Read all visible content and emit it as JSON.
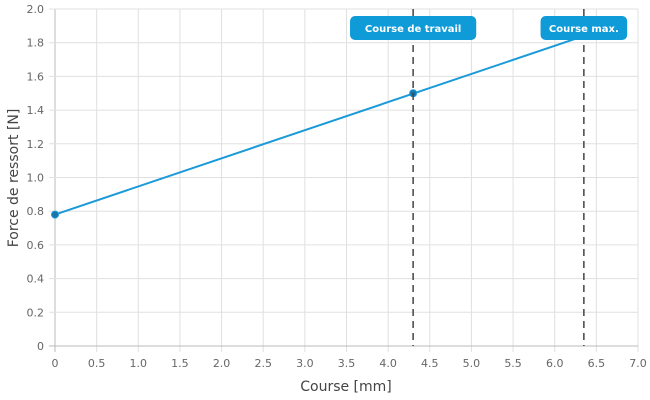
{
  "chart_data": {
    "type": "line",
    "title": "",
    "xlabel": "Course [mm]",
    "ylabel": "Force de ressort [N]",
    "xlim": [
      0,
      7.0
    ],
    "ylim": [
      0,
      2.0
    ],
    "x_ticks": [
      "0",
      "0.5",
      "1.0",
      "1.5",
      "2.0",
      "2.5",
      "3.0",
      "3.5",
      "4.0",
      "4.5",
      "5.0",
      "5.5",
      "6.0",
      "6.5",
      "7.0"
    ],
    "y_ticks": [
      "0",
      "0.2",
      "0.4",
      "0.6",
      "0.8",
      "1.0",
      "1.2",
      "1.4",
      "1.6",
      "1.8",
      "2.0"
    ],
    "grid": true,
    "series": [
      {
        "x": [
          0,
          6.35
        ],
        "y": [
          0.78,
          1.84
        ],
        "color": "#1a9ad8"
      }
    ],
    "points": [
      {
        "x": 0,
        "y": 0.78
      },
      {
        "x": 4.3,
        "y": 1.5
      }
    ],
    "annotations": [
      {
        "label": "Course de travail",
        "x": 4.3
      },
      {
        "label": "Course max.",
        "x": 6.35
      }
    ],
    "colors": {
      "line": "#1a9ad8",
      "point": "#1876a8",
      "annotation_bg": "#0f9ad8",
      "marker_line": "#444444",
      "grid": "#e0e0e0"
    }
  }
}
